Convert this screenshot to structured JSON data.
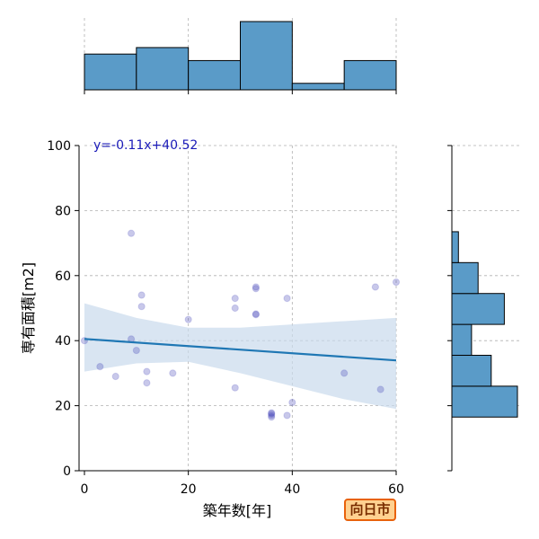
{
  "chart_data": {
    "type": "scatter",
    "xlabel": "築年数[年]",
    "ylabel": "専有面積[m2]",
    "xlim": [
      0,
      60
    ],
    "ylim": [
      0,
      100
    ],
    "xticks": [
      0,
      20,
      40,
      60
    ],
    "yticks": [
      0,
      20,
      40,
      60,
      80,
      100
    ],
    "grid": true,
    "regression": {
      "label": "y=-0.11x+40.52",
      "slope": -0.11,
      "intercept": 40.52,
      "ci_upper": [
        [
          0,
          51.5
        ],
        [
          10,
          47
        ],
        [
          20,
          44
        ],
        [
          30,
          44
        ],
        [
          40,
          45
        ],
        [
          50,
          46
        ],
        [
          60,
          47
        ]
      ],
      "ci_lower": [
        [
          0,
          30.5
        ],
        [
          10,
          33
        ],
        [
          20,
          33.5
        ],
        [
          30,
          30
        ],
        [
          40,
          26
        ],
        [
          50,
          22
        ],
        [
          60,
          19
        ]
      ]
    },
    "points": [
      {
        "x": 0,
        "y": 40
      },
      {
        "x": 3,
        "y": 32
      },
      {
        "x": 6,
        "y": 29
      },
      {
        "x": 9,
        "y": 73
      },
      {
        "x": 9,
        "y": 40.5
      },
      {
        "x": 10,
        "y": 37
      },
      {
        "x": 11,
        "y": 54
      },
      {
        "x": 11,
        "y": 50.5
      },
      {
        "x": 12,
        "y": 30.5
      },
      {
        "x": 12,
        "y": 27
      },
      {
        "x": 17,
        "y": 30
      },
      {
        "x": 20,
        "y": 46.5
      },
      {
        "x": 29,
        "y": 53
      },
      {
        "x": 29,
        "y": 50
      },
      {
        "x": 29,
        "y": 25.5
      },
      {
        "x": 33,
        "y": 56
      },
      {
        "x": 33,
        "y": 56.5
      },
      {
        "x": 33,
        "y": 48
      },
      {
        "x": 33,
        "y": 48.2
      },
      {
        "x": 36,
        "y": 17.5
      },
      {
        "x": 36,
        "y": 17
      },
      {
        "x": 36,
        "y": 16.5
      },
      {
        "x": 36,
        "y": 17.8
      },
      {
        "x": 39,
        "y": 53
      },
      {
        "x": 39,
        "y": 17
      },
      {
        "x": 40,
        "y": 21
      },
      {
        "x": 50,
        "y": 30
      },
      {
        "x": 56,
        "y": 56.5
      },
      {
        "x": 57,
        "y": 25
      },
      {
        "x": 60,
        "y": 58
      }
    ],
    "x_histogram": {
      "bin_edges": [
        0,
        10,
        20,
        30,
        40,
        50,
        60
      ],
      "counts": [
        5.5,
        6.5,
        4.5,
        10.5,
        1,
        4.5
      ]
    },
    "y_histogram": {
      "bin_edges": [
        16.5,
        26,
        35.5,
        45,
        54.5,
        64,
        73.5
      ],
      "counts": [
        10,
        6,
        3,
        8,
        4,
        1
      ]
    },
    "colors": {
      "bar": "#5a9bc8",
      "line": "#1f77b4",
      "ci": "#c9daec",
      "point": "#3a3ab5",
      "grid": "#b0b0b0"
    }
  },
  "badge": {
    "text": "向日市"
  }
}
